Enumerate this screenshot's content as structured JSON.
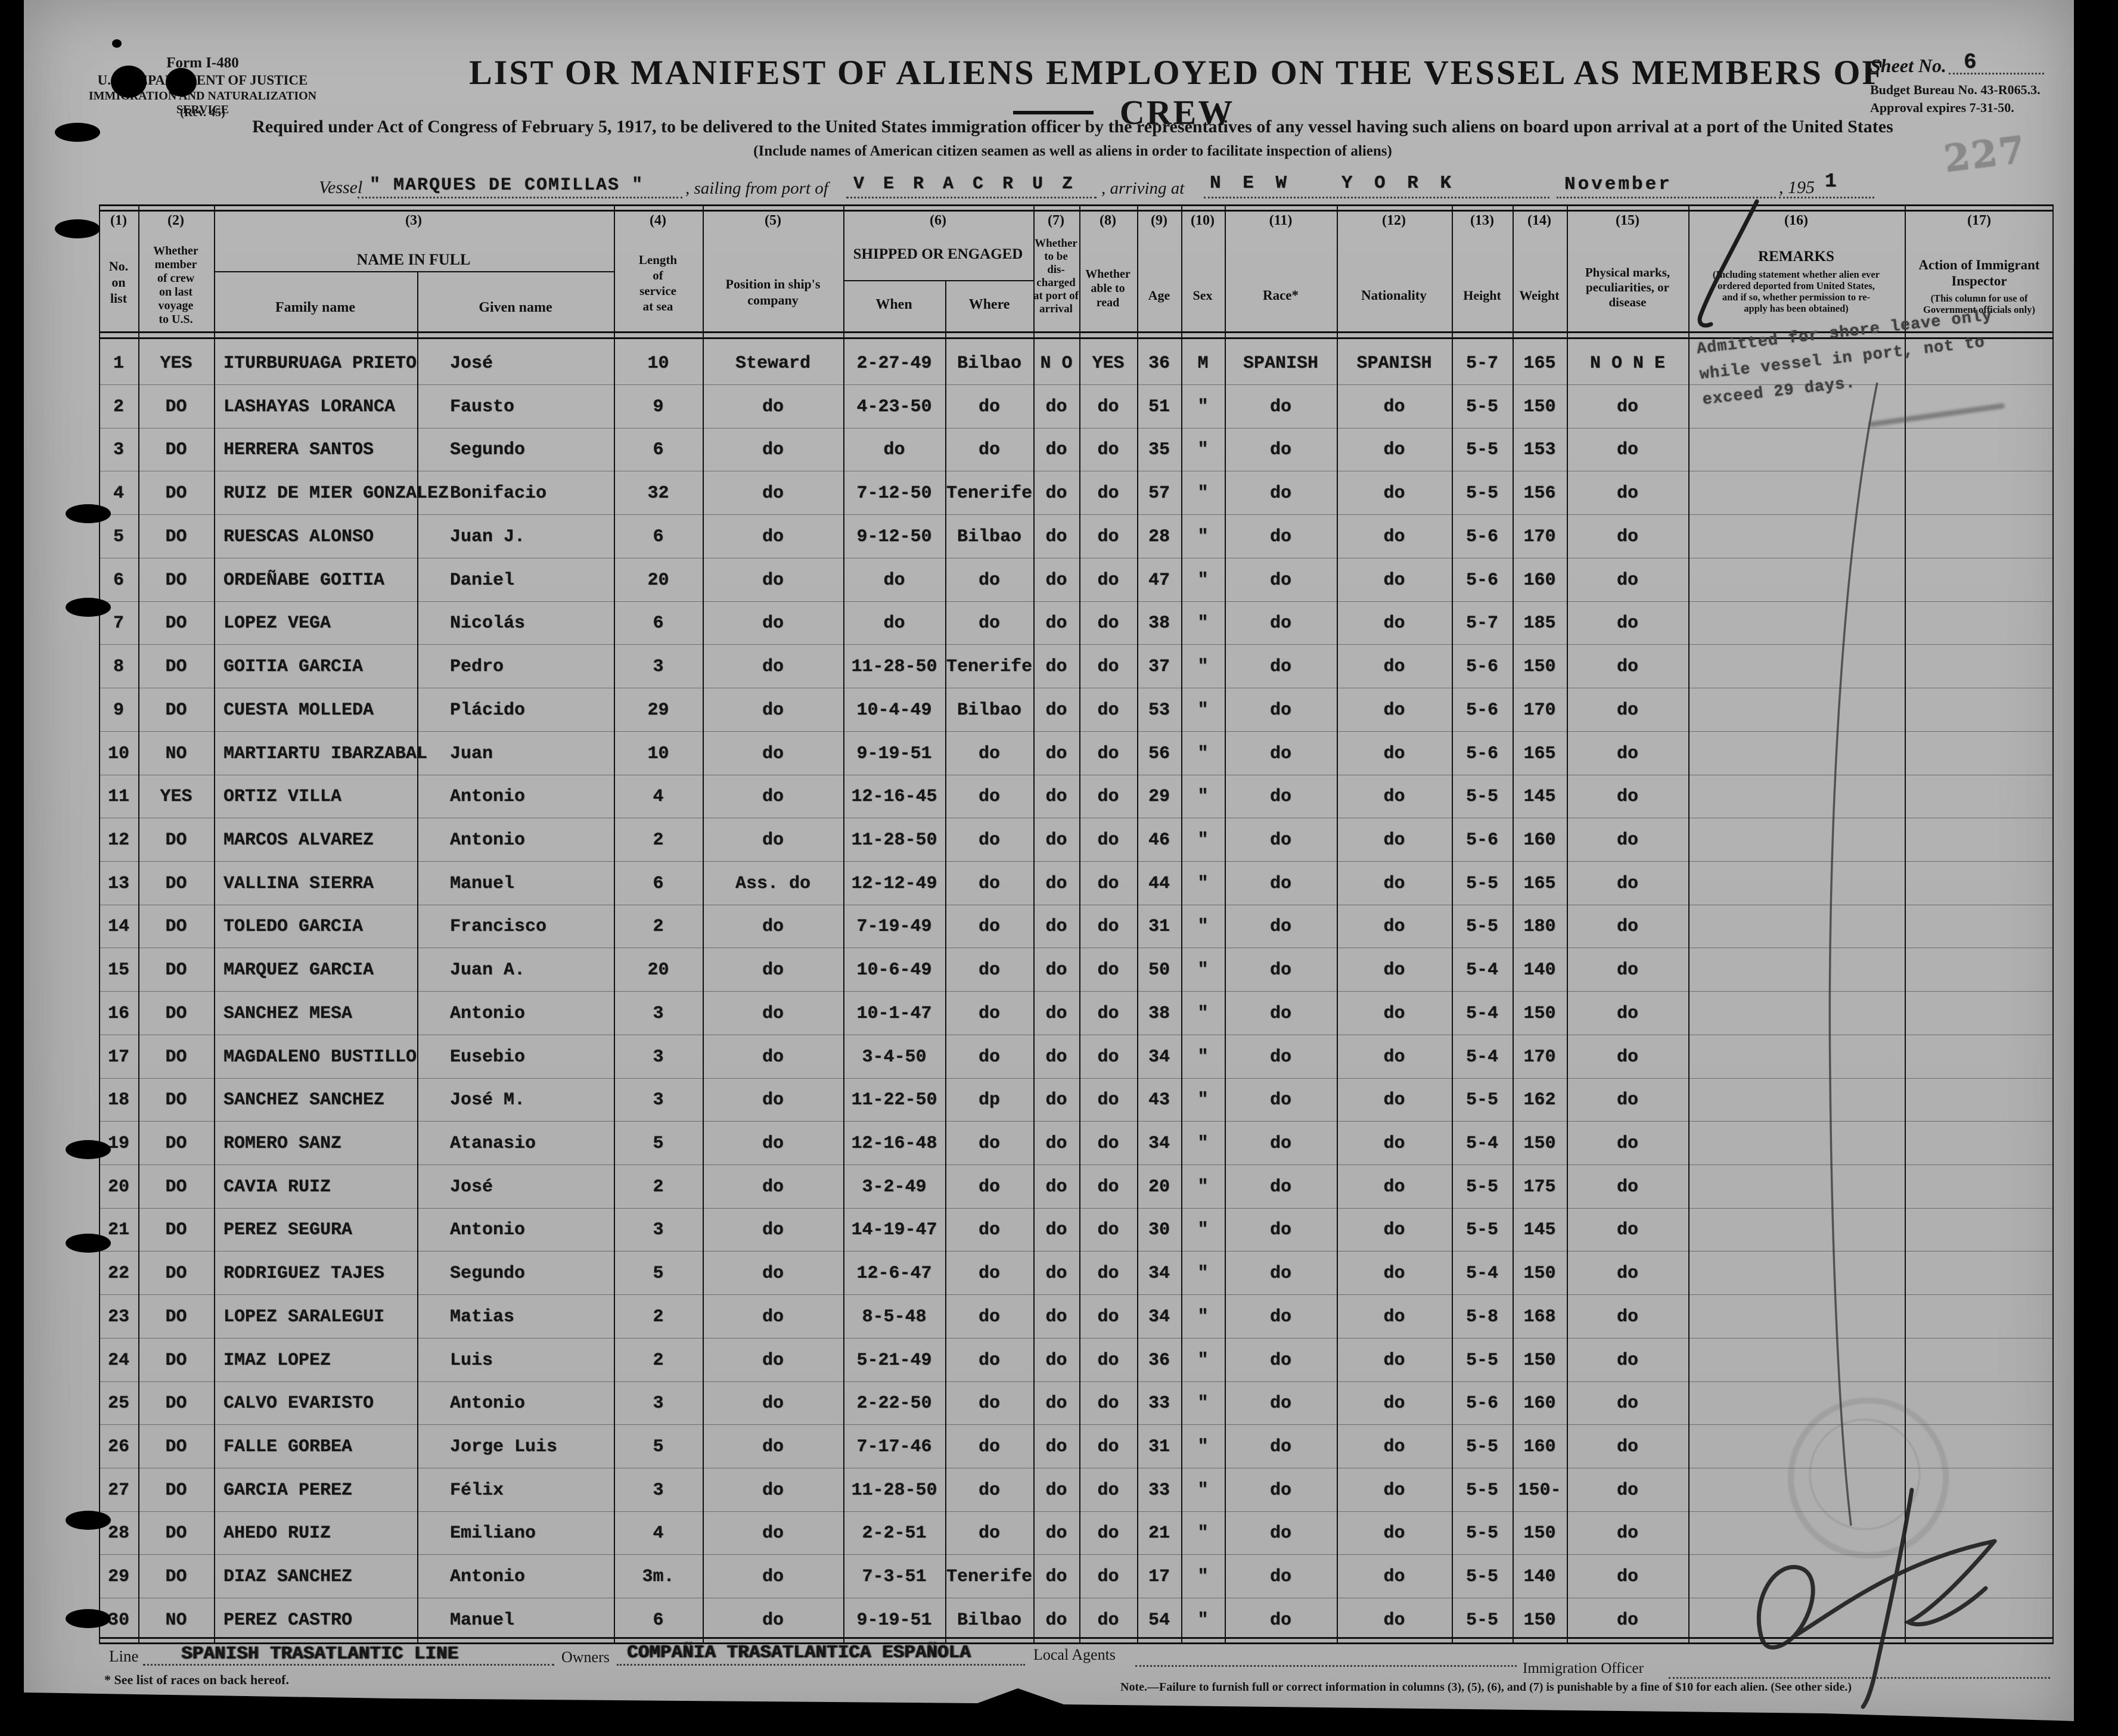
{
  "form": {
    "form_no": "Form I-480",
    "dept_line1": "U. S. DEPARTMENT OF JUSTICE",
    "dept_line2": "IMMIGRATION AND NATURALIZATION SERVICE",
    "rev": "(Rev. 45)",
    "title": "LIST OR MANIFEST OF ALIENS EMPLOYED ON THE VESSEL AS MEMBERS OF CREW",
    "required_line": "Required under Act of Congress of February 5, 1917, to be delivered to the United States immigration officer by the representatives of any vessel having such aliens on board upon arrival at a port of the United States",
    "include_line": "(Include names of American citizen seamen as well as aliens in order to facilitate inspection of aliens)",
    "sheet_label": "Sheet No.",
    "sheet_no": "6",
    "budget_line": "Budget Bureau No. 43-R065.3.",
    "approval_line": "Approval expires 7-31-50.",
    "vessel_label": "Vessel",
    "vessel_name": "\" MARQUES DE COMILLAS \"",
    "sailing_label": ", sailing from port of",
    "port_of_sailing": "V E R A C R U Z",
    "arriving_label": ", arriving at",
    "port_of_arrival": "N E W   Y O R K",
    "month": "November",
    "year_prefix": ", 195",
    "year_digit": "1"
  },
  "table": {
    "nums": [
      "(1)",
      "(2)",
      "(3)",
      "(4)",
      "(5)",
      "(6)",
      "(7)",
      "(8)",
      "(9)",
      "(10)",
      "(11)",
      "(12)",
      "(13)",
      "(14)",
      "(15)",
      "(16)",
      "(17)"
    ],
    "c1": "No.\non\nlist",
    "c2": "Whether\nmember\nof crew\non last\nvoyage\nto U.S.",
    "c3": "NAME IN FULL",
    "c3_family": "Family name",
    "c3_given": "Given name",
    "c4": "Length\nof\nservice\nat sea",
    "c5": "Position in ship's\ncompany",
    "c6": "SHIPPED OR ENGAGED",
    "c6_when": "When",
    "c6_where": "Where",
    "c7": "Whether\nto be\ndis-\ncharged\nat port of\narrival",
    "c8": "Whether\nable to\nread",
    "c9": "Age",
    "c10": "Sex",
    "c11": "Race*",
    "c12": "Nationality",
    "c13": "Height",
    "c14": "Weight",
    "c15": "Physical marks,\npeculiarities, or\ndisease",
    "c16": "REMARKS",
    "c16_sub": "(Including statement whether alien ever\nordered deported from United States,\nand if so, whether permission to re-\napply has been obtained)",
    "c17": "Action of Immigrant\nInspector",
    "c17_sub": "(This column for use of\nGovernment officials only)"
  },
  "rows": [
    [
      "1",
      "YES",
      "ITURBURUAGA PRIETO",
      "José",
      "10",
      "Steward",
      "2-27-49",
      "Bilbao",
      "N O",
      "YES",
      "36",
      "M",
      "SPANISH",
      "SPANISH",
      "5-7",
      "165",
      "N O N E"
    ],
    [
      "2",
      "DO",
      "LASHAYAS LORANCA",
      "Fausto",
      "9",
      "do",
      "4-23-50",
      "do",
      "do",
      "do",
      "51",
      "\"",
      "do",
      "do",
      "5-5",
      "150",
      "do"
    ],
    [
      "3",
      "DO",
      "HERRERA SANTOS",
      "Segundo",
      "6",
      "do",
      "do",
      "do",
      "do",
      "do",
      "35",
      "\"",
      "do",
      "do",
      "5-5",
      "153",
      "do"
    ],
    [
      "4",
      "DO",
      "RUIZ DE MIER GONZALEZ",
      "Bonifacio",
      "32",
      "do",
      "7-12-50",
      "Tenerife",
      "do",
      "do",
      "57",
      "\"",
      "do",
      "do",
      "5-5",
      "156",
      "do"
    ],
    [
      "5",
      "DO",
      "RUESCAS ALONSO",
      "Juan J.",
      "6",
      "do",
      "9-12-50",
      "Bilbao",
      "do",
      "do",
      "28",
      "\"",
      "do",
      "do",
      "5-6",
      "170",
      "do"
    ],
    [
      "6",
      "DO",
      "ORDEÑABE GOITIA",
      "Daniel",
      "20",
      "do",
      "do",
      "do",
      "do",
      "do",
      "47",
      "\"",
      "do",
      "do",
      "5-6",
      "160",
      "do"
    ],
    [
      "7",
      "DO",
      "LOPEZ VEGA",
      "Nicolás",
      "6",
      "do",
      "do",
      "do",
      "do",
      "do",
      "38",
      "\"",
      "do",
      "do",
      "5-7",
      "185",
      "do"
    ],
    [
      "8",
      "DO",
      "GOITIA GARCIA",
      "Pedro",
      "3",
      "do",
      "11-28-50",
      "Tenerife",
      "do",
      "do",
      "37",
      "\"",
      "do",
      "do",
      "5-6",
      "150",
      "do"
    ],
    [
      "9",
      "DO",
      "CUESTA MOLLEDA",
      "Plácido",
      "29",
      "do",
      "10-4-49",
      "Bilbao",
      "do",
      "do",
      "53",
      "\"",
      "do",
      "do",
      "5-6",
      "170",
      "do"
    ],
    [
      "10",
      "NO",
      "MARTIARTU IBARZABAL",
      "Juan",
      "10",
      "do",
      "9-19-51",
      "do",
      "do",
      "do",
      "56",
      "\"",
      "do",
      "do",
      "5-6",
      "165",
      "do"
    ],
    [
      "11",
      "YES",
      "ORTIZ VILLA",
      "Antonio",
      "4",
      "do",
      "12-16-45",
      "do",
      "do",
      "do",
      "29",
      "\"",
      "do",
      "do",
      "5-5",
      "145",
      "do"
    ],
    [
      "12",
      "DO",
      "MARCOS ALVAREZ",
      "Antonio",
      "2",
      "do",
      "11-28-50",
      "do",
      "do",
      "do",
      "46",
      "\"",
      "do",
      "do",
      "5-6",
      "160",
      "do"
    ],
    [
      "13",
      "DO",
      "VALLINA SIERRA",
      "Manuel",
      "6",
      "Ass. do",
      "12-12-49",
      "do",
      "do",
      "do",
      "44",
      "\"",
      "do",
      "do",
      "5-5",
      "165",
      "do"
    ],
    [
      "14",
      "DO",
      "TOLEDO GARCIA",
      "Francisco",
      "2",
      "do",
      "7-19-49",
      "do",
      "do",
      "do",
      "31",
      "\"",
      "do",
      "do",
      "5-5",
      "180",
      "do"
    ],
    [
      "15",
      "DO",
      "MARQUEZ GARCIA",
      "Juan A.",
      "20",
      "do",
      "10-6-49",
      "do",
      "do",
      "do",
      "50",
      "\"",
      "do",
      "do",
      "5-4",
      "140",
      "do"
    ],
    [
      "16",
      "DO",
      "SANCHEZ MESA",
      "Antonio",
      "3",
      "do",
      "10-1-47",
      "do",
      "do",
      "do",
      "38",
      "\"",
      "do",
      "do",
      "5-4",
      "150",
      "do"
    ],
    [
      "17",
      "DO",
      "MAGDALENO BUSTILLO",
      "Eusebio",
      "3",
      "do",
      "3-4-50",
      "do",
      "do",
      "do",
      "34",
      "\"",
      "do",
      "do",
      "5-4",
      "170",
      "do"
    ],
    [
      "18",
      "DO",
      "SANCHEZ SANCHEZ",
      "José M.",
      "3",
      "do",
      "11-22-50",
      "dp",
      "do",
      "do",
      "43",
      "\"",
      "do",
      "do",
      "5-5",
      "162",
      "do"
    ],
    [
      "19",
      "DO",
      "ROMERO SANZ",
      "Atanasio",
      "5",
      "do",
      "12-16-48",
      "do",
      "do",
      "do",
      "34",
      "\"",
      "do",
      "do",
      "5-4",
      "150",
      "do"
    ],
    [
      "20",
      "DO",
      "CAVIA RUIZ",
      "José",
      "2",
      "do",
      "3-2-49",
      "do",
      "do",
      "do",
      "20",
      "\"",
      "do",
      "do",
      "5-5",
      "175",
      "do"
    ],
    [
      "21",
      "DO",
      "PEREZ SEGURA",
      "Antonio",
      "3",
      "do",
      "14-19-47",
      "do",
      "do",
      "do",
      "30",
      "\"",
      "do",
      "do",
      "5-5",
      "145",
      "do"
    ],
    [
      "22",
      "DO",
      "RODRIGUEZ TAJES",
      "Segundo",
      "5",
      "do",
      "12-6-47",
      "do",
      "do",
      "do",
      "34",
      "\"",
      "do",
      "do",
      "5-4",
      "150",
      "do"
    ],
    [
      "23",
      "DO",
      "LOPEZ SARALEGUI",
      "Matias",
      "2",
      "do",
      "8-5-48",
      "do",
      "do",
      "do",
      "34",
      "\"",
      "do",
      "do",
      "5-8",
      "168",
      "do"
    ],
    [
      "24",
      "DO",
      "IMAZ LOPEZ",
      "Luis",
      "2",
      "do",
      "5-21-49",
      "do",
      "do",
      "do",
      "36",
      "\"",
      "do",
      "do",
      "5-5",
      "150",
      "do"
    ],
    [
      "25",
      "DO",
      "CALVO EVARISTO",
      "Antonio",
      "3",
      "do",
      "2-22-50",
      "do",
      "do",
      "do",
      "33",
      "\"",
      "do",
      "do",
      "5-6",
      "160",
      "do"
    ],
    [
      "26",
      "DO",
      "FALLE GORBEA",
      "Jorge Luis",
      "5",
      "do",
      "7-17-46",
      "do",
      "do",
      "do",
      "31",
      "\"",
      "do",
      "do",
      "5-5",
      "160",
      "do"
    ],
    [
      "27",
      "DO",
      "GARCIA PEREZ",
      "Félix",
      "3",
      "do",
      "11-28-50",
      "do",
      "do",
      "do",
      "33",
      "\"",
      "do",
      "do",
      "5-5",
      "150-",
      "do"
    ],
    [
      "28",
      "DO",
      "AHEDO RUIZ",
      "Emiliano",
      "4",
      "do",
      "2-2-51",
      "do",
      "do",
      "do",
      "21",
      "\"",
      "do",
      "do",
      "5-5",
      "150",
      "do"
    ],
    [
      "29",
      "DO",
      "DIAZ SANCHEZ",
      "Antonio",
      "3m.",
      "do",
      "7-3-51",
      "Tenerife",
      "do",
      "do",
      "17",
      "\"",
      "do",
      "do",
      "5-5",
      "140",
      "do"
    ],
    [
      "30",
      "NO",
      "PEREZ CASTRO",
      "Manuel",
      "6",
      "do",
      "9-19-51",
      "Bilbao",
      "do",
      "do",
      "54",
      "\"",
      "do",
      "do",
      "5-5",
      "150",
      "do"
    ]
  ],
  "stamps": {
    "shore_leave": "Admitted for shore leave only\nwhile vessel in port, not to\nexceed 29 days.",
    "page_number": "227"
  },
  "footer": {
    "line_label": "Line",
    "line_value": "SPANISH TRASATLANTIC LINE",
    "owners_label": "Owners",
    "owners_value": "COMPAÑIA TRASATLANTICA ESPAÑOLA",
    "local_agents_label": "Local Agents",
    "races_note": "* See list of races on back hereof.",
    "officer_label": "Immigration Officer",
    "note": "Note.—Failure to furnish full or correct information in columns (3), (5), (6), and (7) is punishable by a fine of $10 for each alien.   (See other side.)"
  }
}
